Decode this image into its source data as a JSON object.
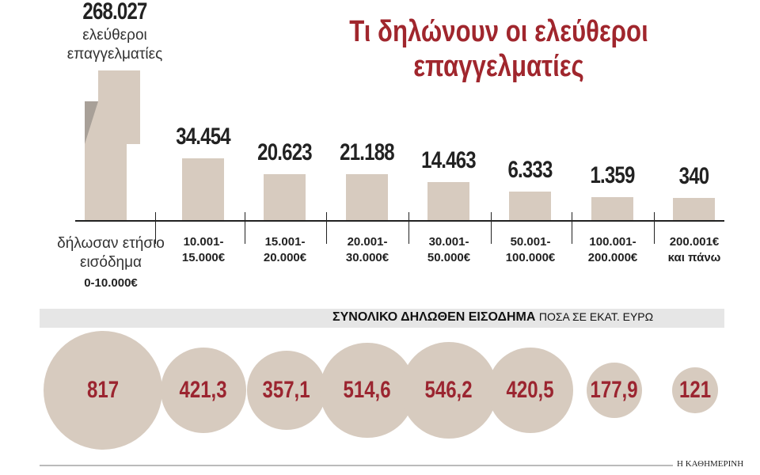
{
  "chart_data": {
    "type": "bar",
    "title": "Τι δηλώνουν οι ελεύθεροι επαγγελματίες",
    "total": {
      "value": "268.027",
      "label": "ελεύθεροι επαγγελματίες"
    },
    "first_category_prefix": "δήλωσαν ετήσιο εισόδημα",
    "categories": [
      "0-10.000€",
      "10.001-\n15.000€",
      "15.001-\n20.000€",
      "20.001-\n30.000€",
      "30.001-\n50.000€",
      "50.001-\n100.000€",
      "100.001-\n200.000€",
      "200.001€\nκαι πάνω"
    ],
    "bar_labels": [
      "268.027",
      "34.454",
      "20.623",
      "21.188",
      "14.463",
      "6.333",
      "1.359",
      "340"
    ],
    "values": [
      268027,
      34454,
      20623,
      21188,
      14463,
      6333,
      1359,
      340
    ],
    "broken_axis_first_bar": true,
    "bar_color": "#d7cbbf",
    "income_section": {
      "title": "ΣΥΝΟΛΙΚΟ ΔΗΛΩΘΕΝ ΕΙΣΟΔΗΜΑ",
      "unit": "ΠΟΣΑ ΣΕ ΕΚΑΤ. ΕΥΡΩ",
      "type": "bubble",
      "labels": [
        "817",
        "421,3",
        "357,1",
        "514,6",
        "546,2",
        "420,5",
        "177,9",
        "121"
      ],
      "values": [
        817,
        421.3,
        357.1,
        514.6,
        546.2,
        420.5,
        177.9,
        121
      ],
      "label_color": "#9b2530"
    },
    "title_color": "#a0262d"
  },
  "source": "Η ΚΑΘΗΜΕΡΙΝΗ"
}
